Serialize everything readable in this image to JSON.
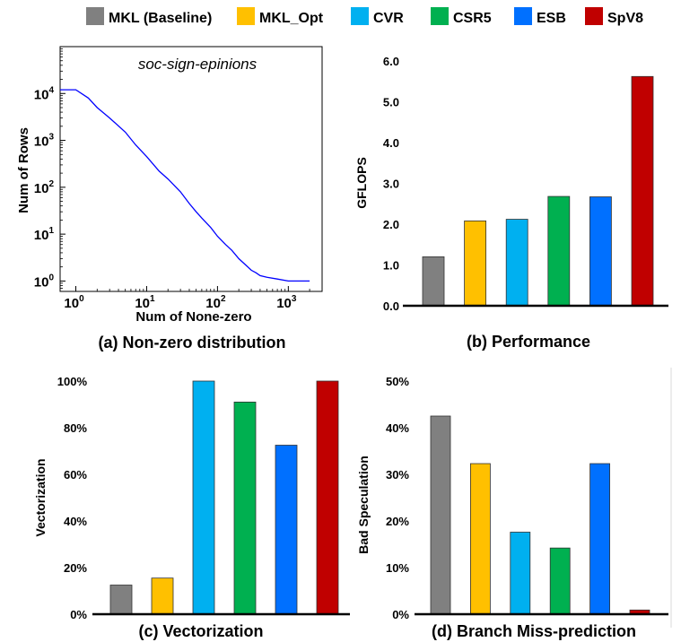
{
  "colors": {
    "MKL (Baseline)": "#808080",
    "MKL_Opt": "#FFC000",
    "CVR": "#00B0F0",
    "CSR5": "#00B050",
    "ESB": "#0070FF",
    "SpV8": "#C00000",
    "distribution_line": "#0000FF"
  },
  "legend": [
    "MKL (Baseline)",
    "MKL_Opt",
    "CVR",
    "CSR5",
    "ESB",
    "SpV8"
  ],
  "chart_data": [
    {
      "type": "line",
      "title": "soc-sign-epinions",
      "caption": "(a) Non-zero distribution",
      "xlabel": "Num of None-zero",
      "ylabel": "Num of Rows",
      "xscale": "log",
      "yscale": "log",
      "xlim": [
        0.6,
        3000
      ],
      "ylim": [
        0.6,
        100000
      ],
      "xticks": [
        1,
        10,
        100,
        1000
      ],
      "xtick_labels": [
        [
          "10",
          "0"
        ],
        [
          "10",
          "1"
        ],
        [
          "10",
          "2"
        ],
        [
          "10",
          "3"
        ]
      ],
      "yticks": [
        1,
        10,
        100,
        1000,
        10000
      ],
      "ytick_labels": [
        [
          "10",
          "0"
        ],
        [
          "10",
          "1"
        ],
        [
          "10",
          "2"
        ],
        [
          "10",
          "3"
        ],
        [
          "10",
          "4"
        ]
      ],
      "series": [
        {
          "x": [
            0.6,
            1,
            1.5,
            2,
            3,
            5,
            7,
            10,
            15,
            20,
            30,
            40,
            50,
            60,
            80,
            100,
            130,
            160,
            200,
            250,
            300,
            350,
            400,
            500,
            700,
            1000,
            1500,
            2000
          ],
          "y": [
            12000,
            12000,
            8000,
            5000,
            3000,
            1500,
            800,
            450,
            220,
            150,
            80,
            45,
            30,
            22,
            14,
            9,
            6,
            4.5,
            3,
            2.2,
            1.7,
            1.5,
            1.3,
            1.2,
            1.1,
            1,
            1,
            1
          ]
        }
      ]
    },
    {
      "type": "bar",
      "caption": "(b) Performance",
      "ylabel": "GFLOPS",
      "categories": [
        "MKL (Baseline)",
        "MKL_Opt",
        "CVR",
        "CSR5",
        "ESB",
        "SpV8"
      ],
      "values": [
        1.2,
        2.08,
        2.12,
        2.68,
        2.67,
        5.62
      ],
      "ylim": [
        0,
        6.0
      ],
      "yticks": [
        0,
        1,
        2,
        3,
        4,
        5,
        6
      ],
      "ytick_labels": [
        "0.0",
        "1.0",
        "2.0",
        "3.0",
        "4.0",
        "5.0",
        "6.0"
      ]
    },
    {
      "type": "bar",
      "caption": "(c) Vectorization",
      "ylabel": "Vectorization",
      "categories": [
        "MKL (Baseline)",
        "MKL_Opt",
        "CVR",
        "CSR5",
        "ESB",
        "SpV8"
      ],
      "values": [
        12.5,
        15.5,
        100,
        91,
        72.5,
        100
      ],
      "ylim": [
        0,
        100
      ],
      "yticks": [
        0,
        20,
        40,
        60,
        80,
        100
      ],
      "ytick_labels": [
        "0%",
        "20%",
        "40%",
        "60%",
        "80%",
        "100%"
      ]
    },
    {
      "type": "bar",
      "caption": "(d) Branch Miss-prediction",
      "ylabel": "Bad Speculation",
      "categories": [
        "MKL (Baseline)",
        "MKL_Opt",
        "CVR",
        "CSR5",
        "ESB",
        "SpV8"
      ],
      "values": [
        42.5,
        32.3,
        17.6,
        14.2,
        32.3,
        0.9
      ],
      "ylim": [
        0,
        50
      ],
      "yticks": [
        0,
        10,
        20,
        30,
        40,
        50
      ],
      "ytick_labels": [
        "0%",
        "10%",
        "20%",
        "30%",
        "40%",
        "50%"
      ]
    }
  ]
}
